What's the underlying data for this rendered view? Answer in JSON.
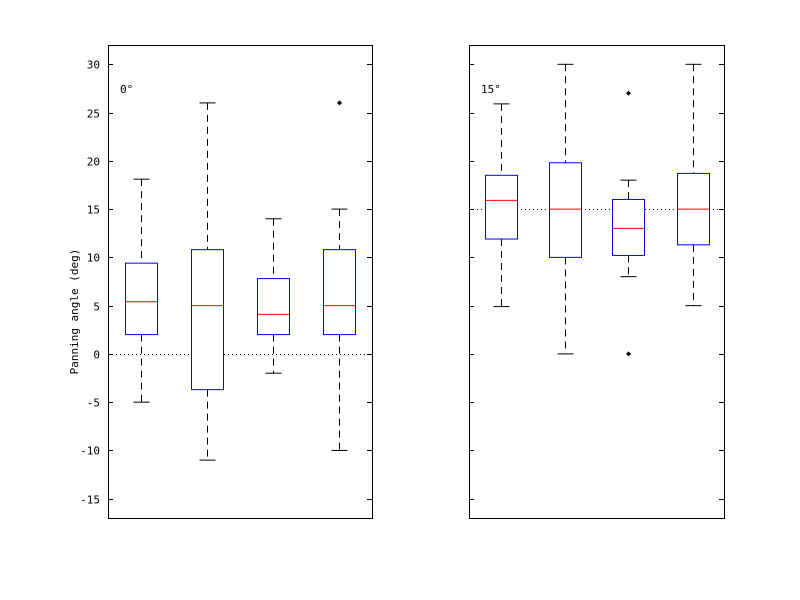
{
  "chart_data": [
    {
      "type": "box",
      "panel_label": "0°",
      "ylabel": "Panning angle (deg)",
      "ylim": [
        -17,
        32
      ],
      "yticks": [
        -15,
        -10,
        -5,
        0,
        5,
        10,
        15,
        20,
        25,
        30
      ],
      "reference_line": 0,
      "boxes": [
        {
          "whisker_low": -5,
          "q1": 2,
          "median": 5.4,
          "q3": 9.4,
          "whisker_high": 18.1,
          "outliers": []
        },
        {
          "whisker_low": -11,
          "q1": -3.7,
          "median": 5,
          "q3": 10.8,
          "whisker_high": 26,
          "outliers": []
        },
        {
          "whisker_low": -2,
          "q1": 2,
          "median": 4.1,
          "q3": 7.8,
          "whisker_high": 14,
          "outliers": []
        },
        {
          "whisker_low": -10,
          "q1": 2,
          "median": 5,
          "q3": 10.8,
          "whisker_high": 15,
          "outliers": [
            26
          ]
        }
      ]
    },
    {
      "type": "box",
      "panel_label": "15°",
      "ylabel": "",
      "ylim": [
        -17,
        32
      ],
      "yticks": [
        -15,
        -10,
        -5,
        0,
        5,
        10,
        15,
        20,
        25,
        30
      ],
      "reference_line": 15,
      "boxes": [
        {
          "whisker_low": 4.9,
          "q1": 11.9,
          "median": 15.9,
          "q3": 18.5,
          "whisker_high": 25.9,
          "outliers": []
        },
        {
          "whisker_low": 0,
          "q1": 10,
          "median": 15,
          "q3": 19.8,
          "whisker_high": 30,
          "outliers": []
        },
        {
          "whisker_low": 8,
          "q1": 10.2,
          "median": 13,
          "q3": 16,
          "whisker_high": 18,
          "outliers": [
            27,
            0
          ]
        },
        {
          "whisker_low": 5,
          "q1": 11.3,
          "median": 15,
          "q3": 18.7,
          "whisker_high": 30,
          "outliers": []
        }
      ]
    }
  ],
  "colors": {
    "box": "#0000ff",
    "median": "#ff0000",
    "whisker": "#000000",
    "axes": "#000000"
  }
}
